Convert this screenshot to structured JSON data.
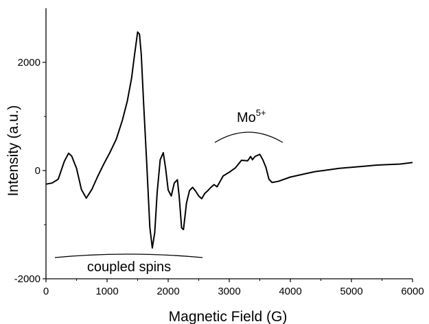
{
  "chart_data": {
    "type": "line",
    "title": "",
    "xlabel": "Magnetic Field (G)",
    "ylabel": "Intensity (a.u.)",
    "xlim": [
      0,
      6000
    ],
    "ylim": [
      -2000,
      3000
    ],
    "x_ticks": [
      0,
      1000,
      2000,
      3000,
      4000,
      5000,
      6000
    ],
    "y_ticks": [
      -2000,
      0,
      2000
    ],
    "x_tick_labels": [
      "0",
      "1000",
      "2000",
      "3000",
      "4000",
      "5000",
      "6000"
    ],
    "y_tick_labels": [
      "-2000",
      "0",
      "2000"
    ],
    "grid": false,
    "legend": "none",
    "series": [
      {
        "color": "#000000",
        "x": [
          0,
          100,
          200,
          300,
          370,
          420,
          500,
          580,
          660,
          750,
          850,
          950,
          1050,
          1150,
          1250,
          1330,
          1400,
          1450,
          1500,
          1530,
          1560,
          1600,
          1650,
          1700,
          1740,
          1780,
          1820,
          1870,
          1920,
          1960,
          2000,
          2050,
          2100,
          2150,
          2180,
          2220,
          2250,
          2300,
          2350,
          2400,
          2450,
          2500,
          2550,
          2600,
          2650,
          2700,
          2750,
          2800,
          2900,
          3000,
          3100,
          3200,
          3300,
          3350,
          3380,
          3420,
          3500,
          3550,
          3600,
          3650,
          3700,
          3800,
          4000,
          4200,
          4400,
          4600,
          4800,
          5000,
          5200,
          5400,
          5600,
          5800,
          6000
        ],
        "y": [
          -250,
          -230,
          -160,
          170,
          320,
          270,
          40,
          -350,
          -510,
          -350,
          -100,
          130,
          340,
          580,
          930,
          1280,
          1700,
          2150,
          2560,
          2520,
          2150,
          1200,
          100,
          -1050,
          -1430,
          -1150,
          -400,
          200,
          330,
          30,
          -360,
          -470,
          -230,
          -170,
          -470,
          -1060,
          -1090,
          -600,
          -370,
          -310,
          -380,
          -470,
          -520,
          -420,
          -370,
          -310,
          -260,
          -300,
          -100,
          -30,
          50,
          190,
          180,
          260,
          200,
          260,
          300,
          200,
          60,
          -160,
          -220,
          -200,
          -120,
          -70,
          -20,
          10,
          40,
          60,
          80,
          100,
          110,
          120,
          150
        ]
      }
    ],
    "annotations": [
      {
        "label": "coupled spins"
      },
      {
        "label": "Mo",
        "superscript": "5+"
      }
    ]
  }
}
